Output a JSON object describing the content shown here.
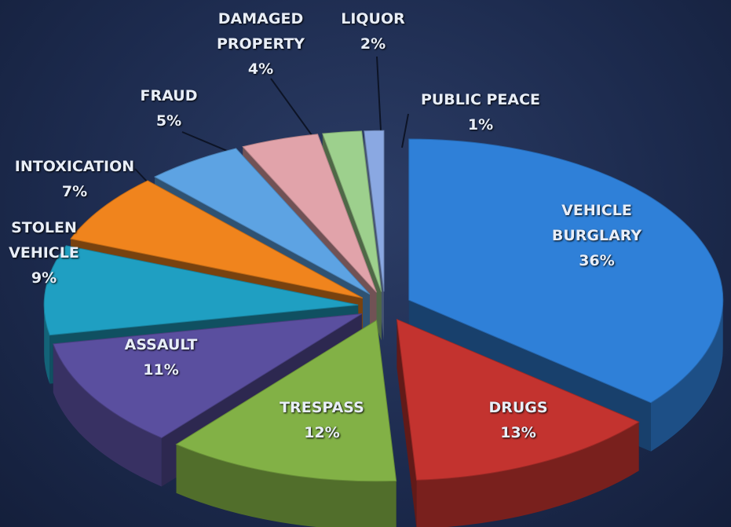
{
  "chart_data": {
    "type": "pie",
    "categories": [
      "VEHICLE BURGLARY",
      "DRUGS",
      "TRESPASS",
      "ASSAULT",
      "STOLEN VEHICLE",
      "INTOXICATION",
      "FRAUD",
      "DAMAGED PROPERTY",
      "LIQUOR",
      "PUBLIC PEACE"
    ],
    "values": [
      36,
      13,
      12,
      11,
      9,
      7,
      5,
      4,
      2,
      1
    ],
    "value_labels": [
      "36%",
      "13%",
      "12%",
      "11%",
      "9%",
      "7%",
      "5%",
      "4%",
      "2%",
      "1%"
    ],
    "colors": [
      "#2f80d8",
      "#c3332f",
      "#82b146",
      "#5a4f9f",
      "#1f9fc2",
      "#f0841d",
      "#5da3e3",
      "#e1a3aa",
      "#9dd08d",
      "#8aa8e2"
    ]
  }
}
